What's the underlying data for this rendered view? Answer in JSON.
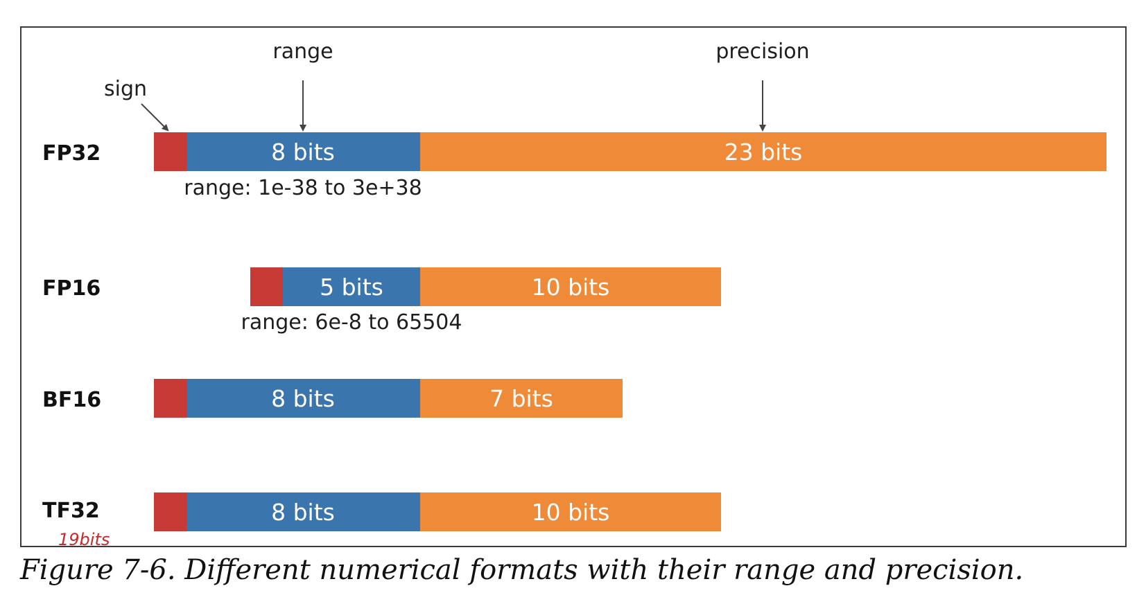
{
  "annotations": {
    "sign": "sign",
    "range": "range",
    "precision": "precision"
  },
  "formats": [
    {
      "name": "FP32",
      "sign_bits": 1,
      "exponent_label": "8 bits",
      "mantissa_label": "23 bits",
      "range_text": "range: 1e-38 to 3e+38"
    },
    {
      "name": "FP16",
      "sign_bits": 1,
      "exponent_label": "5 bits",
      "mantissa_label": "10 bits",
      "range_text": "range: 6e-8 to 65504"
    },
    {
      "name": "BF16",
      "sign_bits": 1,
      "exponent_label": "8 bits",
      "mantissa_label": "7 bits"
    },
    {
      "name": "TF32",
      "sign_bits": 1,
      "exponent_label": "8 bits",
      "mantissa_label": "10 bits",
      "handwritten_note": "19bits"
    }
  ],
  "colors": {
    "sign": "#c83a35",
    "exponent": "#3b75ae",
    "mantissa": "#ef8a38"
  },
  "caption": "Figure 7-6. Different numerical formats with their range and precision."
}
